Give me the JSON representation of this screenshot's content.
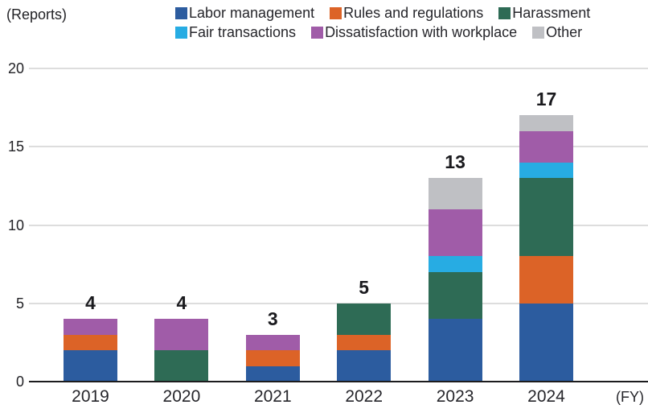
{
  "header": {
    "units_label": "(Reports)",
    "fy_label": "(FY)"
  },
  "chart_data": {
    "type": "bar",
    "stacked": true,
    "title": "",
    "ylabel": "(Reports)",
    "xlabel": "(FY)",
    "ylim": [
      0,
      20
    ],
    "yticks": [
      0,
      5,
      10,
      15,
      20
    ],
    "grid": true,
    "legend_position": "top",
    "categories": [
      "2019",
      "2020",
      "2021",
      "2022",
      "2023",
      "2024"
    ],
    "series": [
      {
        "name": "Labor management",
        "color": "#2c5c9f",
        "values": [
          2,
          0,
          1,
          2,
          4,
          5
        ]
      },
      {
        "name": "Rules and regulations",
        "color": "#dc6327",
        "values": [
          1,
          0,
          1,
          1,
          0,
          3
        ]
      },
      {
        "name": "Harassment",
        "color": "#2e6b55",
        "values": [
          0,
          2,
          0,
          2,
          3,
          5
        ]
      },
      {
        "name": "Fair transactions",
        "color": "#27ace3",
        "values": [
          0,
          0,
          0,
          0,
          1,
          1
        ]
      },
      {
        "name": "Dissatisfaction with workplace",
        "color": "#a05ca8",
        "values": [
          1,
          2,
          1,
          0,
          3,
          2
        ]
      },
      {
        "name": "Other",
        "color": "#bfc0c4",
        "values": [
          0,
          0,
          0,
          0,
          2,
          1
        ]
      }
    ],
    "totals": [
      4,
      4,
      3,
      5,
      13,
      17
    ],
    "legend_rows": [
      [
        "Labor management",
        "Rules and regulations",
        "Harassment"
      ],
      [
        "Fair transactions",
        "Dissatisfaction with workplace",
        "Other"
      ]
    ]
  }
}
